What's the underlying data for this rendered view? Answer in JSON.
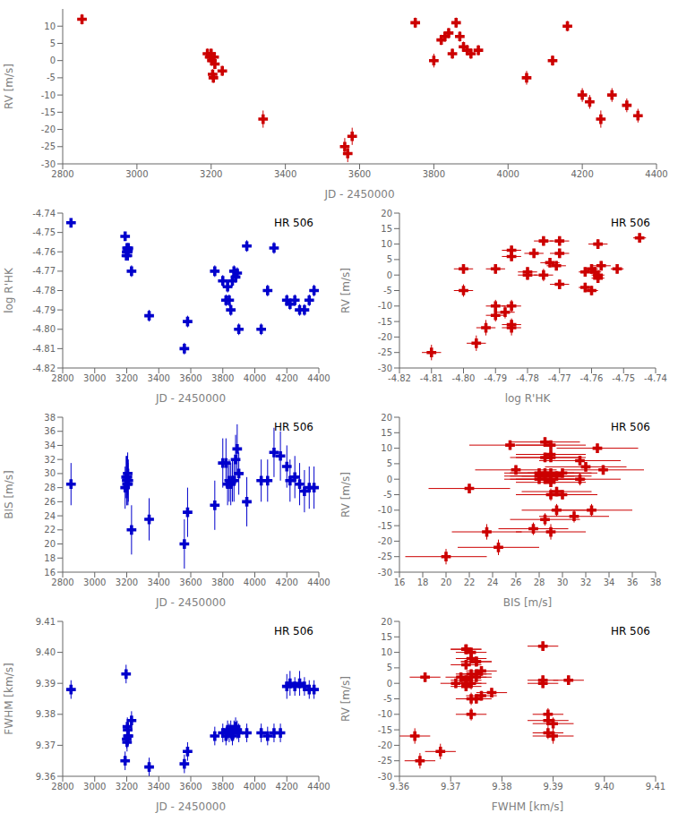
{
  "chart_data": [
    {
      "type": "scatter",
      "x_label": "JD - 2450000",
      "y_label": "RV [m/s]",
      "color": "#cc0000",
      "marker": "plus",
      "x": [
        2852,
        3190,
        3196,
        3200,
        3202,
        3204,
        3206,
        3208,
        3210,
        3230,
        3340,
        3560,
        3568,
        3580,
        3750,
        3800,
        3820,
        3830,
        3840,
        3850,
        3860,
        3870,
        3880,
        3890,
        3900,
        3920,
        4050,
        4120,
        4160,
        4200,
        4220,
        4250,
        4280,
        4320,
        4350
      ],
      "values": [
        12,
        2,
        1,
        2,
        0,
        -4,
        -5,
        1,
        -1,
        -3,
        -17,
        -25,
        -27,
        -22,
        11,
        0,
        6,
        7,
        8,
        2,
        11,
        7,
        4,
        3,
        2,
        3,
        -5,
        0,
        10,
        -10,
        -12,
        -17,
        -10,
        -13,
        -16
      ],
      "y_err": [
        1.5,
        1.5,
        1.5,
        1.5,
        1.5,
        1.5,
        1.5,
        1.5,
        1.5,
        1.5,
        2.5,
        2.5,
        2.5,
        2.5,
        1.5,
        2.0,
        1.5,
        1.5,
        1.5,
        1.5,
        1.5,
        1.5,
        1.5,
        1.5,
        1.5,
        1.5,
        2.0,
        1.5,
        1.5,
        2.0,
        2.0,
        2.5,
        2.0,
        2.0,
        2.0
      ],
      "xlim": [
        2800,
        4400
      ],
      "xticks": [
        2800,
        3000,
        3200,
        3400,
        3600,
        3800,
        4000,
        4200,
        4400
      ],
      "ylim": [
        -30,
        15
      ],
      "yticks": [
        -30,
        -25,
        -20,
        -15,
        -10,
        -5,
        0,
        5,
        10
      ]
    },
    {
      "type": "scatter",
      "x_label": "JD - 2450000",
      "y_label": "log R'HK",
      "annotation": "HR 506",
      "color": "#0000cc",
      "marker": "plus",
      "x": [
        2852,
        3190,
        3198,
        3200,
        3202,
        3204,
        3206,
        3208,
        3210,
        3230,
        3340,
        3560,
        3580,
        3750,
        3800,
        3820,
        3830,
        3840,
        3850,
        3860,
        3870,
        3880,
        3890,
        3900,
        3950,
        4040,
        4080,
        4120,
        4200,
        4220,
        4250,
        4280,
        4310,
        4340,
        4370
      ],
      "values": [
        -4.745,
        -4.752,
        -4.762,
        -4.76,
        -4.758,
        -4.762,
        -4.76,
        -4.759,
        -4.758,
        -4.77,
        -4.793,
        -4.81,
        -4.796,
        -4.77,
        -4.775,
        -4.785,
        -4.778,
        -4.785,
        -4.79,
        -4.775,
        -4.77,
        -4.773,
        -4.771,
        -4.8,
        -4.757,
        -4.8,
        -4.78,
        -4.758,
        -4.785,
        -4.787,
        -4.785,
        -4.79,
        -4.79,
        -4.785,
        -4.78
      ],
      "y_err": [
        0.002,
        0.002,
        0.002,
        0.002,
        0.002,
        0.002,
        0.002,
        0.002,
        0.002,
        0.003,
        0.003,
        0.003,
        0.003,
        0.003,
        0.003,
        0.003,
        0.003,
        0.003,
        0.003,
        0.003,
        0.003,
        0.003,
        0.003,
        0.003,
        0.003,
        0.003,
        0.003,
        0.003,
        0.003,
        0.003,
        0.003,
        0.003,
        0.003,
        0.003,
        0.003
      ],
      "xlim": [
        2800,
        4400
      ],
      "xticks": [
        2800,
        3000,
        3200,
        3400,
        3600,
        3800,
        4000,
        4200,
        4400
      ],
      "ylim": [
        -4.82,
        -4.74
      ],
      "yticks": [
        -4.82,
        -4.81,
        {
          "value": -4.8,
          "label": "-4.80"
        },
        -4.79,
        -4.78,
        -4.77,
        -4.76,
        -4.75,
        -4.74
      ]
    },
    {
      "type": "scatter",
      "x_label": "log R'HK",
      "y_label": "RV [m/s]",
      "annotation": "HR 506",
      "color": "#cc0000",
      "marker": "plus",
      "x": [
        -4.745,
        -4.752,
        -4.762,
        -4.76,
        -4.758,
        -4.762,
        -4.76,
        -4.759,
        -4.758,
        -4.77,
        -4.793,
        -4.81,
        -4.796,
        -4.77,
        -4.775,
        -4.785,
        -4.778,
        -4.785,
        -4.79,
        -4.775,
        -4.77,
        -4.773,
        -4.771,
        -4.8,
        -4.757,
        -4.8,
        -4.78,
        -4.758,
        -4.785,
        -4.787,
        -4.785,
        -4.79,
        -4.79,
        -4.785,
        -4.78
      ],
      "x_err": [
        0.002,
        0.002,
        0.002,
        0.002,
        0.002,
        0.002,
        0.002,
        0.002,
        0.002,
        0.003,
        0.003,
        0.003,
        0.003,
        0.003,
        0.003,
        0.003,
        0.003,
        0.003,
        0.003,
        0.003,
        0.003,
        0.003,
        0.003,
        0.003,
        0.003,
        0.003,
        0.003,
        0.003,
        0.003,
        0.003,
        0.003,
        0.003,
        0.003,
        0.003,
        0.003
      ],
      "values": [
        12,
        2,
        1,
        2,
        0,
        -4,
        -5,
        1,
        -1,
        -3,
        -17,
        -25,
        -22,
        11,
        0,
        6,
        7,
        8,
        2,
        11,
        7,
        4,
        3,
        2,
        3,
        -5,
        0,
        10,
        -10,
        -12,
        -17,
        -10,
        -13,
        -16,
        1
      ],
      "y_err": [
        1.5,
        1.5,
        1.5,
        1.5,
        1.5,
        1.5,
        1.5,
        1.5,
        1.5,
        1.5,
        2.5,
        2.5,
        2.5,
        1.5,
        2.0,
        1.5,
        1.5,
        1.5,
        1.5,
        1.5,
        1.5,
        1.5,
        1.5,
        1.5,
        1.5,
        2.0,
        1.5,
        1.5,
        2.0,
        2.0,
        2.5,
        2.0,
        2.0,
        2.0,
        1.5
      ],
      "xlim": [
        -4.82,
        -4.74
      ],
      "xticks": [
        -4.82,
        -4.81,
        {
          "value": -4.8,
          "label": "-4.80"
        },
        -4.79,
        -4.78,
        -4.77,
        -4.76,
        -4.75,
        -4.74
      ],
      "ylim": [
        -30,
        20
      ],
      "yticks": [
        -30,
        -25,
        -20,
        -15,
        -10,
        -5,
        0,
        5,
        10,
        15,
        20
      ]
    },
    {
      "type": "scatter",
      "x_label": "JD - 2450000",
      "y_label": "BIS [m/s]",
      "annotation": "HR 506",
      "color": "#0000cc",
      "marker": "plus",
      "x": [
        2852,
        3190,
        3196,
        3200,
        3202,
        3204,
        3206,
        3208,
        3210,
        3230,
        3340,
        3560,
        3580,
        3750,
        3800,
        3820,
        3830,
        3840,
        3850,
        3860,
        3870,
        3880,
        3890,
        3900,
        3950,
        4040,
        4080,
        4120,
        4160,
        4200,
        4220,
        4250,
        4280,
        4310,
        4340,
        4370
      ],
      "values": [
        28.5,
        28.0,
        29.5,
        29.0,
        28.5,
        29.5,
        30.0,
        28.5,
        29.0,
        22.0,
        23.5,
        20.0,
        24.5,
        25.5,
        31.5,
        31.5,
        28.5,
        29.0,
        28.5,
        29.0,
        29.0,
        32.0,
        33.5,
        30.0,
        26.0,
        29.0,
        29.0,
        33.0,
        32.5,
        31.0,
        29.0,
        29.5,
        28.5,
        27.5,
        28.0,
        28.0
      ],
      "y_err": [
        3.0,
        3.0,
        3.0,
        3.5,
        3.0,
        3.0,
        3.0,
        3.0,
        3.0,
        3.5,
        3.0,
        3.5,
        3.5,
        3.5,
        3.5,
        3.5,
        3.0,
        3.0,
        3.0,
        3.0,
        3.0,
        3.5,
        3.5,
        3.0,
        3.5,
        3.0,
        3.0,
        3.5,
        3.5,
        3.0,
        3.0,
        3.0,
        3.0,
        3.0,
        3.0,
        3.0
      ],
      "xlim": [
        2800,
        4400
      ],
      "xticks": [
        2800,
        3000,
        3200,
        3400,
        3600,
        3800,
        4000,
        4200,
        4400
      ],
      "ylim": [
        16,
        38
      ],
      "yticks": [
        16,
        18,
        20,
        22,
        24,
        26,
        28,
        30,
        32,
        34,
        36,
        38
      ]
    },
    {
      "type": "scatter",
      "x_label": "BIS [m/s]",
      "y_label": "RV [m/s]",
      "annotation": "HR 506",
      "color": "#cc0000",
      "marker": "plus",
      "x": [
        28.5,
        28.0,
        29.5,
        29.0,
        28.5,
        29.5,
        30.0,
        28.5,
        29.0,
        22.0,
        23.5,
        20.0,
        24.5,
        25.5,
        31.5,
        31.5,
        28.5,
        29.0,
        28.5,
        29.0,
        29.0,
        32.0,
        33.5,
        30.0,
        26.0,
        29.0,
        29.0,
        33.0,
        32.5,
        31.0,
        29.0,
        29.5,
        28.5,
        27.5,
        28.0,
        28.0
      ],
      "x_err": [
        3.0,
        3.0,
        3.0,
        3.5,
        3.0,
        3.0,
        3.0,
        3.0,
        3.0,
        3.5,
        3.0,
        3.5,
        3.5,
        3.5,
        3.5,
        3.5,
        3.0,
        3.0,
        3.0,
        3.0,
        3.0,
        3.5,
        3.5,
        3.0,
        3.5,
        3.0,
        3.0,
        3.5,
        3.5,
        3.0,
        3.0,
        3.0,
        3.0,
        3.0,
        3.0,
        3.0
      ],
      "values": [
        12,
        2,
        1,
        2,
        0,
        -4,
        -5,
        1,
        -1,
        -3,
        -17,
        -25,
        -22,
        11,
        0,
        6,
        7,
        8,
        2,
        11,
        7,
        4,
        3,
        2,
        3,
        -5,
        0,
        10,
        -10,
        -12,
        -17,
        -10,
        -13,
        -16,
        1,
        0
      ],
      "y_err": [
        1.5,
        1.5,
        1.5,
        1.5,
        1.5,
        1.5,
        1.5,
        1.5,
        1.5,
        1.5,
        2.5,
        2.5,
        2.5,
        1.5,
        2.0,
        1.5,
        1.5,
        1.5,
        1.5,
        1.5,
        1.5,
        1.5,
        1.5,
        1.5,
        1.5,
        2.0,
        1.5,
        1.5,
        2.0,
        2.0,
        2.5,
        2.0,
        2.0,
        2.0,
        1.5,
        1.5
      ],
      "xlim": [
        16,
        38
      ],
      "xticks": [
        16,
        18,
        20,
        22,
        24,
        26,
        28,
        30,
        32,
        34,
        36,
        38
      ],
      "ylim": [
        -30,
        20
      ],
      "yticks": [
        -30,
        -25,
        -20,
        -15,
        -10,
        -5,
        0,
        5,
        10,
        15,
        20
      ]
    },
    {
      "type": "scatter",
      "x_label": "JD - 2450000",
      "y_label": "FWHM [km/s]",
      "annotation": "HR 506",
      "color": "#0000cc",
      "marker": "plus",
      "x": [
        2852,
        3190,
        3196,
        3200,
        3202,
        3204,
        3206,
        3208,
        3210,
        3230,
        3340,
        3560,
        3580,
        3750,
        3800,
        3820,
        3830,
        3840,
        3850,
        3860,
        3870,
        3880,
        3890,
        3900,
        3950,
        4040,
        4080,
        4120,
        4160,
        4200,
        4220,
        4250,
        4280,
        4310,
        4340,
        4370
      ],
      "values": [
        9.388,
        9.365,
        9.393,
        9.372,
        9.371,
        9.376,
        9.375,
        9.373,
        9.373,
        9.378,
        9.363,
        9.364,
        9.368,
        9.373,
        9.374,
        9.373,
        9.375,
        9.374,
        9.375,
        9.373,
        9.375,
        9.376,
        9.375,
        9.374,
        9.374,
        9.374,
        9.373,
        9.374,
        9.374,
        9.389,
        9.39,
        9.389,
        9.39,
        9.389,
        9.388,
        9.388
      ],
      "y_err": [
        0.003,
        0.003,
        0.003,
        0.003,
        0.003,
        0.003,
        0.003,
        0.003,
        0.003,
        0.003,
        0.003,
        0.003,
        0.003,
        0.003,
        0.003,
        0.003,
        0.003,
        0.003,
        0.003,
        0.003,
        0.003,
        0.003,
        0.003,
        0.003,
        0.003,
        0.003,
        0.003,
        0.003,
        0.003,
        0.004,
        0.004,
        0.003,
        0.004,
        0.003,
        0.003,
        0.003
      ],
      "xlim": [
        2800,
        4400
      ],
      "xticks": [
        2800,
        3000,
        3200,
        3400,
        3600,
        3800,
        4000,
        4200,
        4400
      ],
      "ylim": [
        9.36,
        9.41
      ],
      "yticks": [
        9.36,
        9.37,
        9.38,
        9.39,
        {
          "value": 9.4,
          "label": "9.40"
        },
        9.41
      ]
    },
    {
      "type": "scatter",
      "x_label": "FWHM [km/s]",
      "y_label": "RV [m/s]",
      "annotation": "HR 506",
      "color": "#cc0000",
      "marker": "plus",
      "x": [
        9.388,
        9.365,
        9.393,
        9.372,
        9.371,
        9.376,
        9.375,
        9.373,
        9.373,
        9.378,
        9.363,
        9.364,
        9.368,
        9.373,
        9.374,
        9.373,
        9.375,
        9.374,
        9.375,
        9.373,
        9.375,
        9.376,
        9.375,
        9.374,
        9.374,
        9.374,
        9.373,
        9.374,
        9.374,
        9.389,
        9.39,
        9.389,
        9.39,
        9.389,
        9.388,
        9.388
      ],
      "x_err": [
        0.003,
        0.003,
        0.003,
        0.003,
        0.003,
        0.003,
        0.003,
        0.003,
        0.003,
        0.003,
        0.003,
        0.003,
        0.003,
        0.003,
        0.003,
        0.003,
        0.003,
        0.003,
        0.003,
        0.003,
        0.003,
        0.003,
        0.003,
        0.003,
        0.003,
        0.003,
        0.003,
        0.003,
        0.003,
        0.004,
        0.004,
        0.003,
        0.004,
        0.003,
        0.003,
        0.003
      ],
      "values": [
        12,
        2,
        1,
        2,
        0,
        -4,
        -5,
        1,
        -1,
        -3,
        -17,
        -25,
        -22,
        11,
        0,
        6,
        7,
        8,
        2,
        11,
        7,
        4,
        3,
        2,
        3,
        -5,
        0,
        10,
        -10,
        -12,
        -17,
        -10,
        -13,
        -16,
        1,
        0
      ],
      "y_err": [
        1.5,
        1.5,
        1.5,
        1.5,
        1.5,
        1.5,
        1.5,
        1.5,
        1.5,
        1.5,
        2.5,
        2.5,
        2.5,
        1.5,
        2.0,
        1.5,
        1.5,
        1.5,
        1.5,
        1.5,
        1.5,
        1.5,
        1.5,
        1.5,
        1.5,
        2.0,
        1.5,
        1.5,
        2.0,
        2.0,
        2.5,
        2.0,
        2.0,
        2.0,
        1.5,
        1.5
      ],
      "xlim": [
        9.36,
        9.41
      ],
      "xticks": [
        9.36,
        9.37,
        9.38,
        9.39,
        {
          "value": 9.4,
          "label": "9.40"
        },
        9.41
      ],
      "ylim": [
        -30,
        20
      ],
      "yticks": [
        -30,
        -25,
        -20,
        -15,
        -10,
        -5,
        0,
        5,
        10,
        15,
        20
      ]
    }
  ]
}
